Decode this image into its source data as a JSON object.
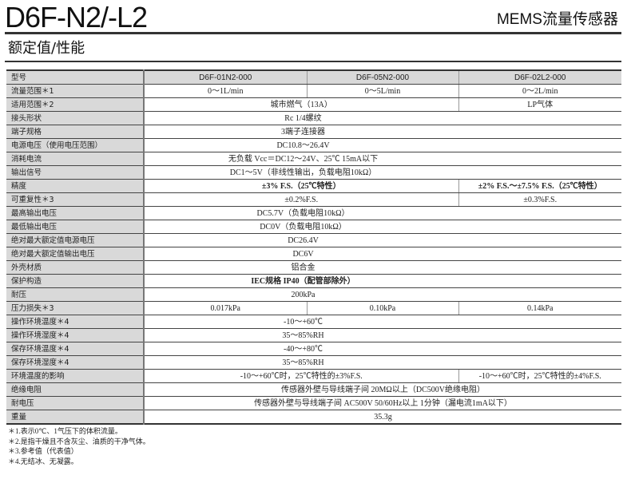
{
  "title": "D6F-N2/-L2",
  "subtitle": "MEMS流量传感器",
  "section": "额定值/性能",
  "rows": [
    {
      "label": "型号",
      "header": true,
      "cells": [
        {
          "t": "D6F-01N2-000"
        },
        {
          "t": "D6F-05N2-000"
        },
        {
          "t": "D6F-02L2-000"
        }
      ]
    },
    {
      "label": "流量范围＊1",
      "cells": [
        {
          "t": "0～1L/min"
        },
        {
          "t": "0～5L/min"
        },
        {
          "t": "0～2L/min"
        }
      ]
    },
    {
      "label": "适用范围＊2",
      "cells": [
        {
          "t": "城市燃气（13A）",
          "span": 2
        },
        {
          "t": "LP气体"
        }
      ]
    },
    {
      "label": "接头形状",
      "cells": [
        {
          "t": "Rc 1/4螺纹",
          "span": 3,
          "shift": true
        }
      ]
    },
    {
      "label": "端子规格",
      "cells": [
        {
          "t": "3端子连接器",
          "span": 3,
          "shift": true
        }
      ]
    },
    {
      "label": "电源电压（使用电压范围）",
      "cells": [
        {
          "t": "DC10.8～26.4V",
          "span": 3,
          "shift": true
        }
      ]
    },
    {
      "label": "消耗电流",
      "cells": [
        {
          "t": "无负载 Vcc＝DC12～24V、25℃ 15mA以下",
          "span": 3,
          "shift": true
        }
      ]
    },
    {
      "label": "输出信号",
      "cells": [
        {
          "t": "DC1～5V（非线性输出，负载电阻10kΩ）",
          "span": 3,
          "shift": true
        }
      ]
    },
    {
      "label": "精度",
      "cells": [
        {
          "t": "±3% F.S.（25℃特性）",
          "span": 2,
          "bold": true
        },
        {
          "t": "±2% F.S.～±7.5% F.S.（25℃特性）",
          "bold": true
        }
      ]
    },
    {
      "label": "可重复性＊3",
      "cells": [
        {
          "t": "±0.2%F.S.",
          "span": 2
        },
        {
          "t": "±0.3%F.S."
        }
      ]
    },
    {
      "label": "最高输出电压",
      "cells": [
        {
          "t": "DC5.7V（负载电阻10kΩ）",
          "span": 3,
          "shift": true
        }
      ]
    },
    {
      "label": "最低输出电压",
      "cells": [
        {
          "t": "DC0V（负载电阻10kΩ）",
          "span": 3,
          "shift": true
        }
      ]
    },
    {
      "label": "绝对最大额定值电源电压",
      "cells": [
        {
          "t": "DC26.4V",
          "span": 3,
          "shift": true
        }
      ]
    },
    {
      "label": "绝对最大额定值输出电压",
      "cells": [
        {
          "t": "DC6V",
          "span": 3,
          "shift": true
        }
      ]
    },
    {
      "label": "外壳材质",
      "cells": [
        {
          "t": "铝合金",
          "span": 3,
          "shift": true
        }
      ]
    },
    {
      "label": "保护构造",
      "cells": [
        {
          "t": "IEC规格 IP40（配管部除外）",
          "span": 3,
          "shift": true,
          "bold": true
        }
      ]
    },
    {
      "label": "耐压",
      "cells": [
        {
          "t": "200kPa",
          "span": 3,
          "shift": true
        }
      ]
    },
    {
      "label": "压力损失＊3",
      "cells": [
        {
          "t": "0.017kPa"
        },
        {
          "t": "0.10kPa"
        },
        {
          "t": "0.14kPa"
        }
      ]
    },
    {
      "label": "操作环境温度＊4",
      "cells": [
        {
          "t": "-10～+60℃",
          "span": 3,
          "shift": true
        }
      ]
    },
    {
      "label": "操作环境湿度＊4",
      "cells": [
        {
          "t": "35～85%RH",
          "span": 3,
          "shift": true
        }
      ]
    },
    {
      "label": "保存环境温度＊4",
      "cells": [
        {
          "t": "-40～+80℃",
          "span": 3,
          "shift": true
        }
      ]
    },
    {
      "label": "保存环境湿度＊4",
      "cells": [
        {
          "t": "35～85%RH",
          "span": 3,
          "shift": true
        }
      ]
    },
    {
      "label": "环境温度的影响",
      "cells": [
        {
          "t": "-10～+60℃时，25℃特性的±3%F.S.",
          "span": 2
        },
        {
          "t": "-10～+60℃时，25℃特性的±4%F.S."
        }
      ]
    },
    {
      "label": "绝缘电阻",
      "cells": [
        {
          "t": "传感器外壁与导线端子间 20MΩ以上（DC500V绝缘电阻）",
          "span": 3
        }
      ]
    },
    {
      "label": "耐电压",
      "cells": [
        {
          "t": "传感器外壁与导线端子间 AC500V 50/60Hz以上 1分钟（漏电流1mA以下）",
          "span": 3
        }
      ]
    },
    {
      "label": "重量",
      "cells": [
        {
          "t": "35.3g",
          "span": 3
        }
      ]
    }
  ],
  "notes": [
    "＊1.表示0℃、1气压下的体积流量。",
    "＊2.是指干燥且不含灰尘、油质的干净气体。",
    "＊3.参考值（代表值）",
    "＊4.无结冰、无凝露。"
  ]
}
